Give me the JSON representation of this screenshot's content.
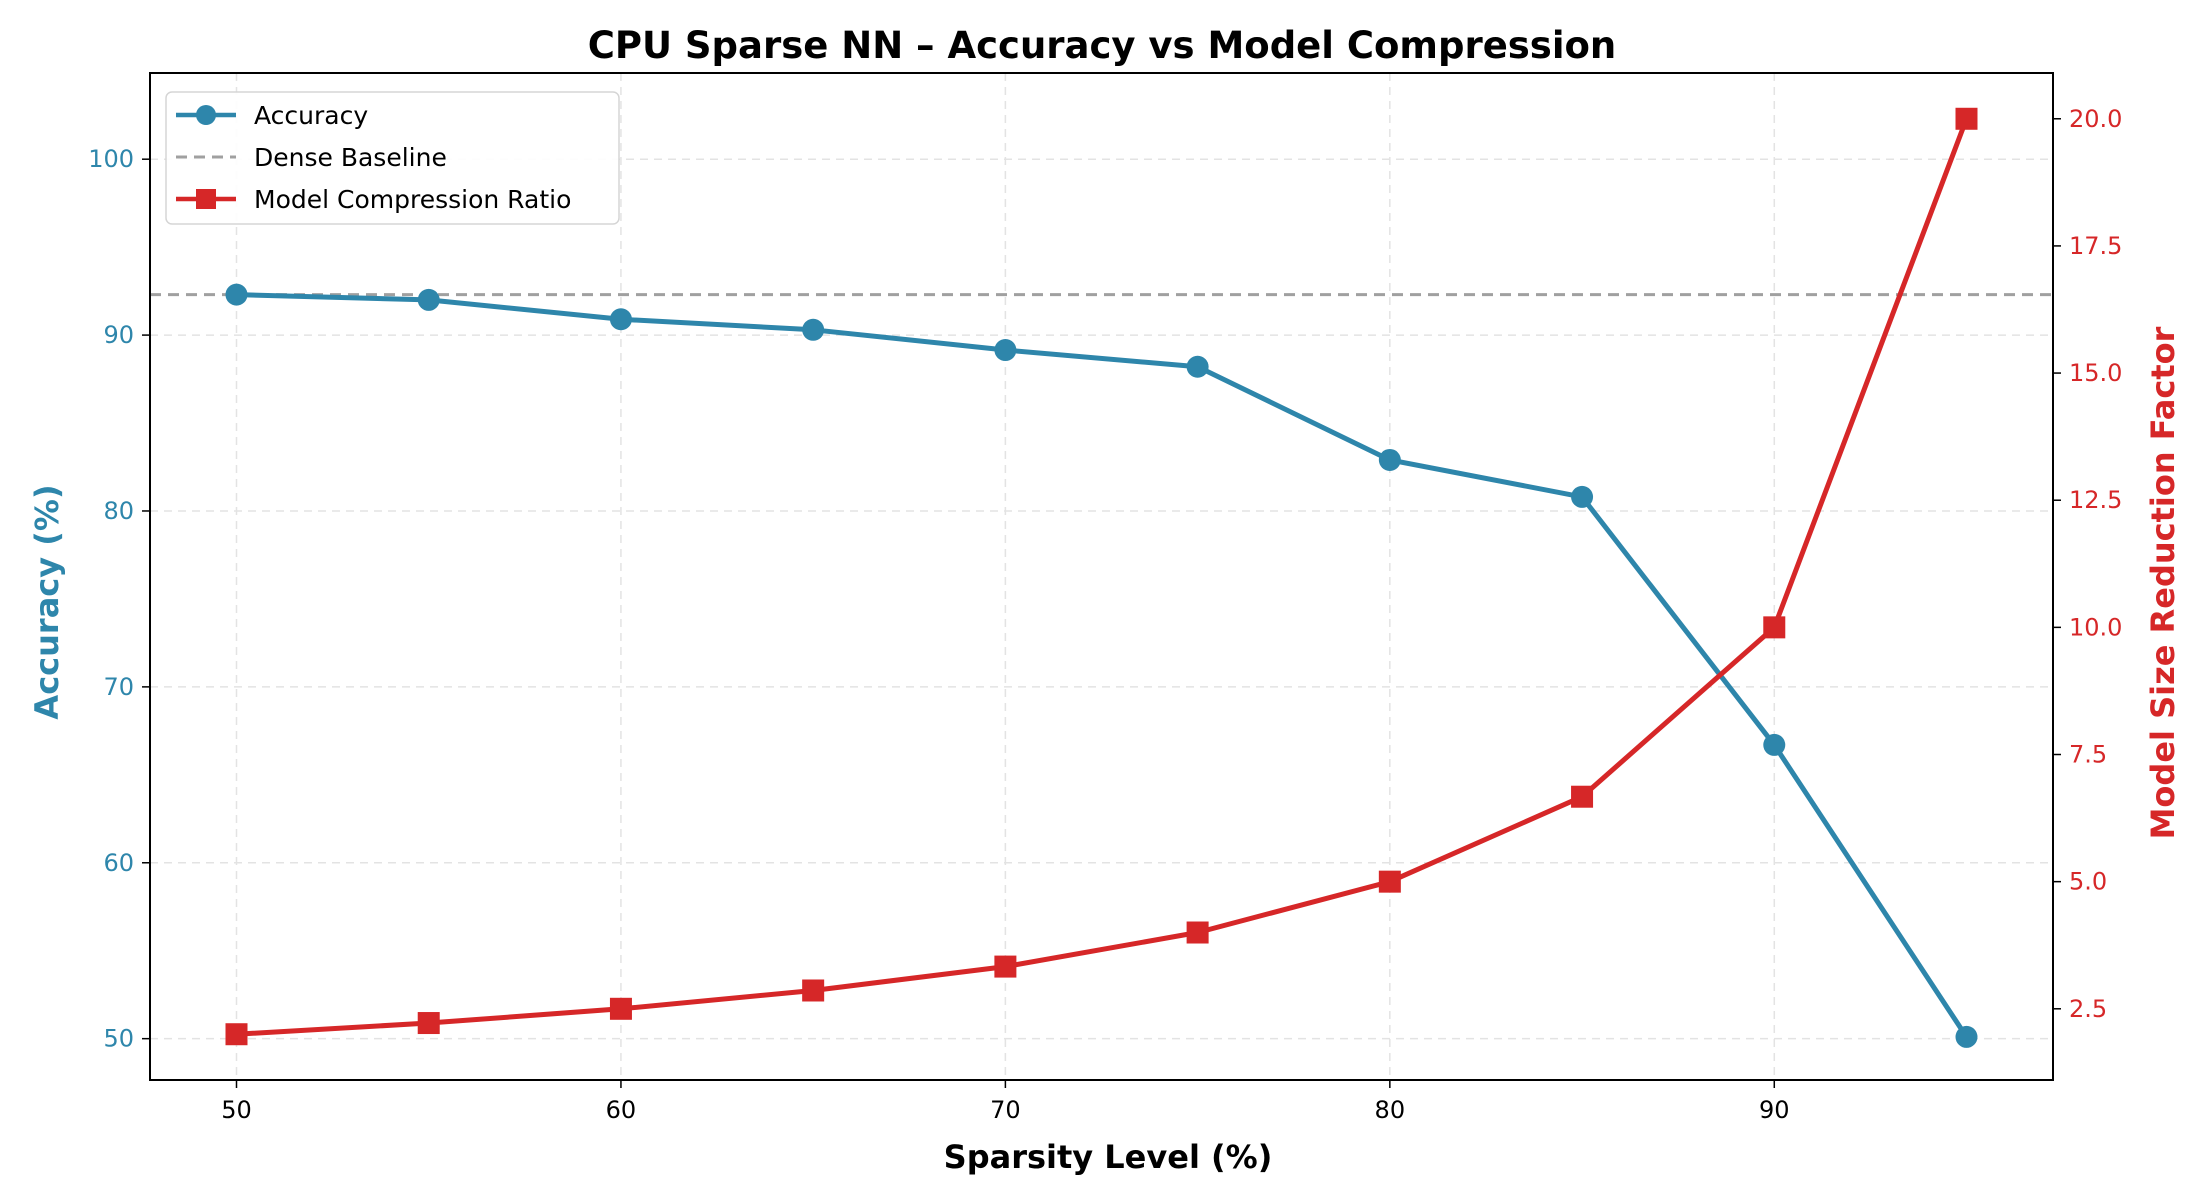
{
  "chart_data": {
    "type": "line",
    "title": "CPU Sparse NN – Accuracy vs Model Compression",
    "xlabel": "Sparsity Level (%)",
    "ylabel_left": "Accuracy (%)",
    "ylabel_right": "Model Size Reduction Factor",
    "x": [
      50,
      55,
      60,
      65,
      70,
      75,
      80,
      85,
      90,
      95
    ],
    "xlim": [
      47.75,
      97.25
    ],
    "ylim_left": [
      47.65,
      104.9
    ],
    "ylim_right": [
      1.1,
      20.9
    ],
    "x_ticks": [
      "50",
      "60",
      "70",
      "80",
      "90"
    ],
    "y_ticks_left": [
      "50",
      "60",
      "70",
      "80",
      "90",
      "100"
    ],
    "y_ticks_right": [
      "2.5",
      "5.0",
      "7.5",
      "10.0",
      "12.5",
      "15.0",
      "17.5",
      "20.0"
    ],
    "grid": true,
    "legend_position": "upper-left",
    "series": [
      {
        "name": "Accuracy",
        "axis": "left",
        "color": "#2e86ab",
        "marker": "circle",
        "values": [
          92.3,
          92.0,
          90.9,
          90.3,
          89.15,
          88.2,
          82.9,
          80.8,
          66.7,
          50.1
        ]
      },
      {
        "name": "Dense Baseline",
        "axis": "left",
        "color": "#a0a0a0",
        "style": "dashed",
        "value": 92.3
      },
      {
        "name": "Model Compression Ratio",
        "axis": "right",
        "color": "#d62728",
        "marker": "square",
        "values": [
          2.0,
          2.22,
          2.5,
          2.86,
          3.33,
          4.0,
          5.0,
          6.67,
          10.0,
          20.0
        ]
      }
    ],
    "colors": {
      "left_axis": "#2e86ab",
      "right_axis": "#d62728"
    }
  }
}
